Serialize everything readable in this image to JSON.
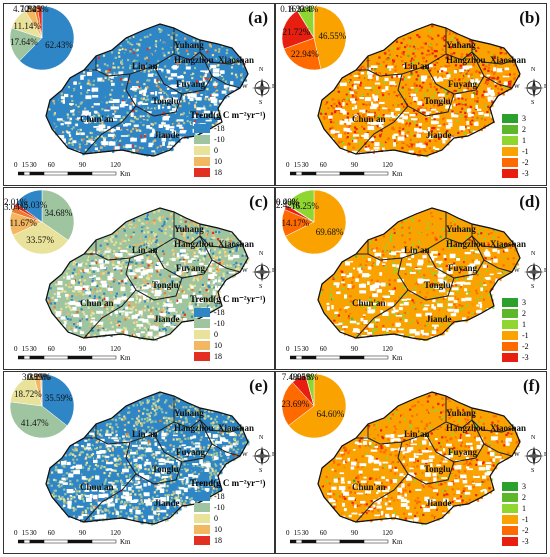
{
  "panels": [
    {
      "label": "(a)",
      "legend_type": "trend",
      "pie": [
        62.43,
        17.64,
        11.14,
        4.7,
        1.84,
        2.25
      ],
      "pie_colors": [
        "#2f86c6",
        "#9ec5a0",
        "#e8e29a",
        "#f3b661",
        "#f07a2a",
        "#e32f22"
      ],
      "pie_labels": [
        "62.43%",
        "17.64%",
        "11.14%",
        "4.70%",
        "1.84%",
        "2.25%"
      ]
    },
    {
      "label": "(b)",
      "legend_type": "class",
      "pie": [
        46.55,
        22.94,
        21.72,
        0.16,
        8.23,
        0.4
      ],
      "pie_colors": [
        "#f9a200",
        "#ff6a00",
        "#e81e10",
        "#2ca02c",
        "#8fd630",
        "#5cb82a"
      ],
      "pie_labels": [
        "46.55%",
        "22.94%",
        "21.72%",
        "0.16%",
        "8.23%",
        "0.4%"
      ]
    },
    {
      "label": "(c)",
      "legend_type": "trend",
      "pie": [
        34.68,
        33.57,
        11.67,
        3.04,
        2.01,
        15.03
      ],
      "pie_colors": [
        "#9ec5a0",
        "#e8e29a",
        "#f3b661",
        "#f07a2a",
        "#e32f22",
        "#2f86c6"
      ],
      "pie_labels": [
        "34.68%",
        "33.57%",
        "11.67%",
        "3.04%",
        "2.01%",
        "15.03%"
      ]
    },
    {
      "label": "(d)",
      "legend_type": "class",
      "pie": [
        69.68,
        14.17,
        2.42,
        0.08,
        0.4,
        16.25
      ],
      "pie_colors": [
        "#f9a200",
        "#ff6a00",
        "#e81e10",
        "#2ca02c",
        "#5cb82a",
        "#8fd630"
      ],
      "pie_labels": [
        "69.68%",
        "14.17%",
        "2.42%",
        "0.08%",
        "0.40%",
        "16.25%"
      ]
    },
    {
      "label": "(e)",
      "legend_type": "trend",
      "pie": [
        35.59,
        41.47,
        18.72,
        3.38,
        0.59,
        0.25
      ],
      "pie_colors": [
        "#2f86c6",
        "#9ec5a0",
        "#e8e29a",
        "#f3b661",
        "#f07a2a",
        "#e32f22"
      ],
      "pie_labels": [
        "35.59%",
        "41.47%",
        "18.72%",
        "3.38%",
        "0.59%",
        "0.25%"
      ]
    },
    {
      "label": "(f)",
      "legend_type": "class",
      "pie": [
        64.6,
        23.69,
        7.48,
        0.05,
        4.18
      ],
      "pie_colors": [
        "#f9a200",
        "#ff6a00",
        "#e81e10",
        "#2ca02c",
        "#8fd630"
      ],
      "pie_labels": [
        "64.60%",
        "23.69%",
        "7.48%",
        "0.05%",
        "4.18%"
      ]
    }
  ],
  "cities": {
    "linan": "Lin'an",
    "yuhang": "Yuhang",
    "hangzhou": "Hangzhou",
    "xiaoshan": "Xiaoshan",
    "fuyang": "Fuyang",
    "tonglu": "Tonglu",
    "chunan": "Chun'an",
    "jiande": "Jiande"
  },
  "trend_legend": {
    "title": "Trend(g C m⁻²yr⁻¹)",
    "items": [
      "-18",
      "-10",
      "0",
      "10",
      "18"
    ],
    "colors": [
      "#2f86c6",
      "#9ec5a0",
      "#e8e29a",
      "#f3b661",
      "#e32f22"
    ]
  },
  "class_legend": {
    "items": [
      "3",
      "2",
      "1",
      "-1",
      "-2",
      "-3"
    ],
    "colors": [
      "#2ca02c",
      "#5cb82a",
      "#8fd630",
      "#f9a200",
      "#ff6a00",
      "#e81e10"
    ]
  },
  "scalebar": {
    "ticks": [
      "0",
      "15",
      "30",
      "60",
      "90",
      "120"
    ],
    "unit": "Km"
  },
  "compass": {
    "n": "N",
    "s": "S",
    "e": "E",
    "w": "W"
  }
}
